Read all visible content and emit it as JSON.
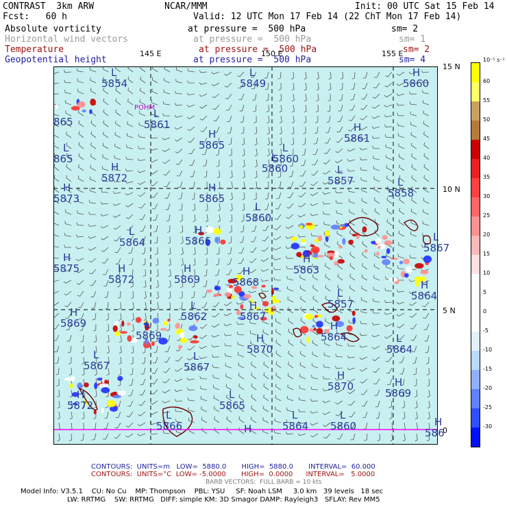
{
  "header": {
    "row1_left": "CONTRAST  3km ARW",
    "row1_mid": "NCAR/MMM",
    "row1_right": "Init: 00 UTC Sat 15 Feb 14",
    "row2_left": "Fcst:   60 h",
    "row2_right": "Valid: 12 UTC Mon 17 Feb 14 (22 ChT Mon 17 Feb 14)",
    "fields": [
      {
        "name": "Absolute vorticity",
        "level": "at pressure =  500 hPa",
        "sm": "sm= 2",
        "color": "#000000"
      },
      {
        "name": "Horizontal wind vectors",
        "level": "at pressure =  500 hPa",
        "sm": "sm= 1",
        "color": "#9a9a9a"
      },
      {
        "name": "Temperature",
        "level": "at pressure =  500 hPa",
        "sm": "sm= 2",
        "color": "#9b1010"
      },
      {
        "name": "Geopotential height",
        "level": "at pressure =  500 hPa",
        "sm": "sm= 4",
        "color": "#2020a0"
      }
    ]
  },
  "axes": {
    "lon_labels": [
      "145 E",
      "150 E",
      "155 E"
    ],
    "lat_labels": [
      "15 N",
      "10 N",
      "5 N",
      "0"
    ],
    "station": "POHM"
  },
  "colorbar": {
    "unit": "10⁻⁵ s⁻¹",
    "levels": [
      "60",
      "55",
      "50",
      "45",
      "40",
      "35",
      "30",
      "25",
      "20",
      "15",
      "10",
      "5",
      "0",
      "-5",
      "-10",
      "-15",
      "-20",
      "-25",
      "-30"
    ],
    "colors": [
      "#ffff00",
      "#ffff66",
      "#c8a060",
      "#b87a3a",
      "#c80000",
      "#e82020",
      "#ff4040",
      "#ff6666",
      "#ff9090",
      "#ffb8b8",
      "#ffe0e0",
      "#ffffff",
      "#ffffff",
      "#ffffff",
      "#e0f0ff",
      "#b8d8ff",
      "#90b0ff",
      "#6080ff",
      "#3050ff",
      "#0010ff"
    ]
  },
  "map": {
    "background": "#c8f0f0",
    "centers": [
      {
        "type": "L",
        "value": "5854"
      },
      {
        "type": "L",
        "value": "5849"
      },
      {
        "type": "H",
        "value": "5860"
      },
      {
        "type": "",
        "value": "865"
      },
      {
        "type": "L",
        "value": "5861"
      },
      {
        "type": "H",
        "value": "5865"
      },
      {
        "type": "H",
        "value": "5861"
      },
      {
        "type": "L",
        "value": "5860"
      },
      {
        "type": "L",
        "value": "865"
      },
      {
        "type": "L",
        "value": "5860"
      },
      {
        "type": "H",
        "value": "5872"
      },
      {
        "type": "L",
        "value": "5857"
      },
      {
        "type": "L",
        "value": "5858"
      },
      {
        "type": "H",
        "value": "5873"
      },
      {
        "type": "H",
        "value": "5865"
      },
      {
        "type": "L",
        "value": "5860"
      },
      {
        "type": "L",
        "value": "5864"
      },
      {
        "type": "H",
        "value": "5866"
      },
      {
        "type": "L",
        "value": "5867"
      },
      {
        "type": "H",
        "value": "5875"
      },
      {
        "type": "H",
        "value": "5872"
      },
      {
        "type": "H",
        "value": "5869"
      },
      {
        "type": "H",
        "value": "5868"
      },
      {
        "type": "H",
        "value": "5863"
      },
      {
        "type": "H",
        "value": "5864"
      },
      {
        "type": "L",
        "value": "5862"
      },
      {
        "type": "H",
        "value": "5867"
      },
      {
        "type": "L",
        "value": "5857"
      },
      {
        "type": "H",
        "value": "5869"
      },
      {
        "type": "L",
        "value": "5869"
      },
      {
        "type": "H",
        "value": "5864"
      },
      {
        "type": "H",
        "value": "5870"
      },
      {
        "type": "L",
        "value": "5864"
      },
      {
        "type": "L",
        "value": "5867"
      },
      {
        "type": "L",
        "value": "5867"
      },
      {
        "type": "H",
        "value": "5870"
      },
      {
        "type": "H",
        "value": "5869"
      },
      {
        "type": "H",
        "value": "5872"
      },
      {
        "type": "L",
        "value": "5865"
      },
      {
        "type": "L",
        "value": "5866"
      },
      {
        "type": "H",
        "value": ""
      },
      {
        "type": "L",
        "value": "5864"
      },
      {
        "type": "L",
        "value": "5860"
      },
      {
        "type": "H",
        "value": "586"
      }
    ]
  },
  "footer": {
    "contours1_label": "CONTOURS:  UNITS=m   LOW=  5880.0       HIGH=  5880.0       INTERVAL=  60.000",
    "contours2_label": "CONTOURS:  UNITS=°C  LOW= -5.0000       HIGH=  0.0000      INTERVAL=   5.0000",
    "barb_label": "BARB VECTORS:  FULL BARB = 10 kts",
    "model_line1": "Model Info: V3.5.1    CU: No Cu    MP: Thompson    PBL: YSU     SF: Noah LSM     3.0 km   39 levels   18 sec",
    "model_line2": "LW: RRTMG    SW: RRTMG   DIFF: simple KM: 3D Smagor DAMP: Rayleigh3   SFLAY: Rev MM5"
  }
}
